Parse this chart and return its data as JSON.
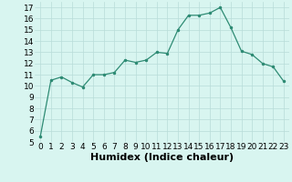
{
  "x": [
    0,
    1,
    2,
    3,
    4,
    5,
    6,
    7,
    8,
    9,
    10,
    11,
    12,
    13,
    14,
    15,
    16,
    17,
    18,
    19,
    20,
    21,
    22,
    23
  ],
  "y": [
    5.5,
    10.5,
    10.8,
    10.3,
    9.9,
    11.0,
    11.0,
    11.2,
    12.3,
    12.1,
    12.3,
    13.0,
    12.9,
    15.0,
    16.3,
    16.3,
    16.5,
    17.0,
    15.2,
    13.1,
    12.8,
    12.0,
    11.7,
    10.4
  ],
  "line_color": "#2e8b74",
  "marker_color": "#2e8b74",
  "bg_color": "#d8f5f0",
  "grid_color": "#b8dcd8",
  "xlabel": "Humidex (Indice chaleur)",
  "xlim": [
    -0.5,
    23.5
  ],
  "ylim": [
    5,
    17.5
  ],
  "yticks": [
    5,
    6,
    7,
    8,
    9,
    10,
    11,
    12,
    13,
    14,
    15,
    16,
    17
  ],
  "xticks": [
    0,
    1,
    2,
    3,
    4,
    5,
    6,
    7,
    8,
    9,
    10,
    11,
    12,
    13,
    14,
    15,
    16,
    17,
    18,
    19,
    20,
    21,
    22,
    23
  ],
  "xlabel_fontsize": 8,
  "tick_fontsize": 6.5
}
